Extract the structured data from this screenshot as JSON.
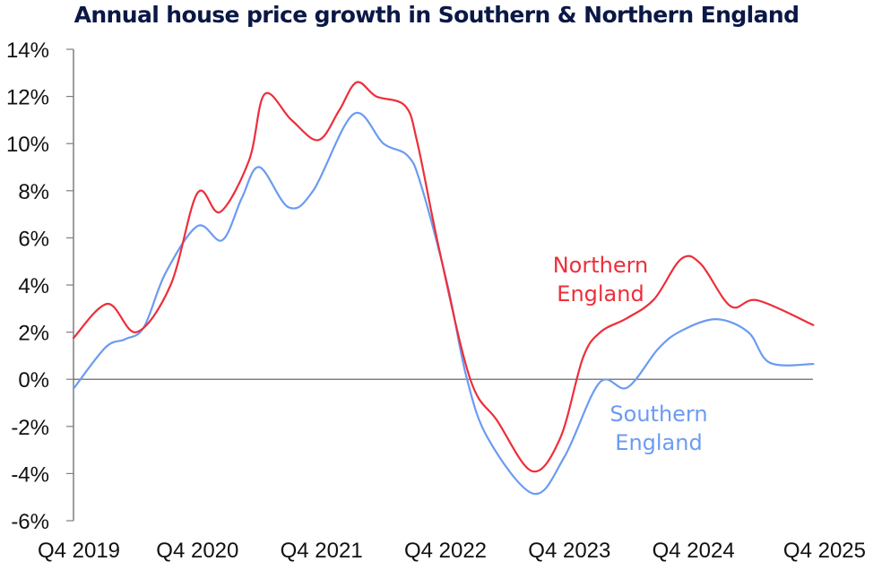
{
  "chart_data": {
    "type": "line",
    "title": "Annual house price growth in Southern & Northern England",
    "xlabel": "",
    "ylabel": "",
    "x_unit": "months since Q4 2019 (Dec 2019 = 0)",
    "x_ticks": [
      {
        "label": "Q4 2019",
        "month": 0
      },
      {
        "label": "Q4 2020",
        "month": 12
      },
      {
        "label": "Q4 2021",
        "month": 24
      },
      {
        "label": "Q4 2022",
        "month": 36
      },
      {
        "label": "Q4 2023",
        "month": 48
      },
      {
        "label": "Q4 2024",
        "month": 60
      },
      {
        "label": "Q4 2025",
        "month": 72
      }
    ],
    "xlim": [
      0,
      72
    ],
    "ylim": [
      -6,
      14
    ],
    "y_ticks": [
      {
        "value": 14,
        "label": "14%"
      },
      {
        "value": 12,
        "label": "12%"
      },
      {
        "value": 10,
        "label": "10%"
      },
      {
        "value": 8,
        "label": "8%"
      },
      {
        "value": 6,
        "label": "6%"
      },
      {
        "value": 4,
        "label": "4%"
      },
      {
        "value": 2,
        "label": "2%"
      },
      {
        "value": 0,
        "label": "0%"
      },
      {
        "value": -2,
        "label": "-2%"
      },
      {
        "value": -4,
        "label": "-4%"
      },
      {
        "value": -6,
        "label": "-6%"
      }
    ],
    "grid": false,
    "zero_line": true,
    "legend": "inline labels",
    "series": [
      {
        "name": "Northern England",
        "label_lines": [
          "Northern",
          "England"
        ],
        "color": "#ee2e3a",
        "points": [
          [
            0,
            1.75
          ],
          [
            3.3,
            3.2
          ],
          [
            6.1,
            2.0
          ],
          [
            9.4,
            4.0
          ],
          [
            12.0,
            7.9
          ],
          [
            14.2,
            7.1
          ],
          [
            17.0,
            9.3
          ],
          [
            18.5,
            12.1
          ],
          [
            21.1,
            11.0
          ],
          [
            23.7,
            10.15
          ],
          [
            25.7,
            11.4
          ],
          [
            27.4,
            12.6
          ],
          [
            29.3,
            12.0
          ],
          [
            32.1,
            11.6
          ],
          [
            33.3,
            10.0
          ],
          [
            35.4,
            5.5
          ],
          [
            38.4,
            0.0
          ],
          [
            41.0,
            -1.75
          ],
          [
            44.4,
            -3.9
          ],
          [
            47.1,
            -2.5
          ],
          [
            49.3,
            0.9
          ],
          [
            51.0,
            2.0
          ],
          [
            53.6,
            2.6
          ],
          [
            56.2,
            3.4
          ],
          [
            58.8,
            5.1
          ],
          [
            60.7,
            4.9
          ],
          [
            63.6,
            3.1
          ],
          [
            66.2,
            3.35
          ],
          [
            71.6,
            2.3
          ]
        ]
      },
      {
        "name": "Southern England",
        "label_lines": [
          "Southern",
          "England"
        ],
        "color": "#6b9bf2",
        "points": [
          [
            0,
            -0.4
          ],
          [
            3.1,
            1.35
          ],
          [
            5.0,
            1.7
          ],
          [
            6.8,
            2.2
          ],
          [
            8.9,
            4.5
          ],
          [
            12.0,
            6.5
          ],
          [
            14.4,
            5.9
          ],
          [
            16.3,
            7.7
          ],
          [
            18.0,
            9.0
          ],
          [
            20.8,
            7.3
          ],
          [
            23.2,
            8.0
          ],
          [
            27.1,
            11.25
          ],
          [
            30.0,
            10.0
          ],
          [
            32.3,
            9.5
          ],
          [
            33.6,
            8.3
          ],
          [
            36.2,
            4.0
          ],
          [
            38.0,
            0.15
          ],
          [
            40.1,
            -2.5
          ],
          [
            44.5,
            -4.85
          ],
          [
            47.5,
            -3.3
          ],
          [
            50.9,
            -0.15
          ],
          [
            53.6,
            -0.35
          ],
          [
            56.6,
            1.3
          ],
          [
            58.8,
            2.05
          ],
          [
            62.2,
            2.55
          ],
          [
            65.3,
            2.0
          ],
          [
            67.4,
            0.7
          ],
          [
            71.6,
            0.65
          ]
        ]
      }
    ]
  }
}
